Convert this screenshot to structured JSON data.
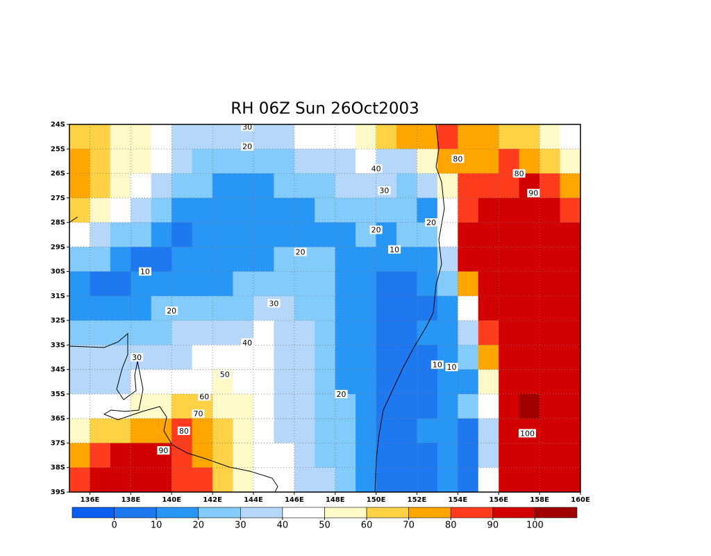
{
  "chart_data": {
    "type": "contour",
    "title": "RH 06Z Sun 26Oct2003",
    "xlim": [
      135,
      160
    ],
    "ylim": [
      -39,
      -24
    ],
    "xticks": [
      {
        "value": 136,
        "label": "136E"
      },
      {
        "value": 138,
        "label": "138E"
      },
      {
        "value": 140,
        "label": "140E"
      },
      {
        "value": 142,
        "label": "142E"
      },
      {
        "value": 144,
        "label": "144E"
      },
      {
        "value": 146,
        "label": "146E"
      },
      {
        "value": 148,
        "label": "148E"
      },
      {
        "value": 150,
        "label": "150E"
      },
      {
        "value": 152,
        "label": "152E"
      },
      {
        "value": 154,
        "label": "154E"
      },
      {
        "value": 156,
        "label": "156E"
      },
      {
        "value": 158,
        "label": "158E"
      },
      {
        "value": 160,
        "label": "160E"
      }
    ],
    "yticks": [
      {
        "value": -24,
        "label": "24S"
      },
      {
        "value": -25,
        "label": "25S"
      },
      {
        "value": -26,
        "label": "26S"
      },
      {
        "value": -27,
        "label": "27S"
      },
      {
        "value": -28,
        "label": "28S"
      },
      {
        "value": -29,
        "label": "29S"
      },
      {
        "value": -30,
        "label": "30S"
      },
      {
        "value": -31,
        "label": "31S"
      },
      {
        "value": -32,
        "label": "32S"
      },
      {
        "value": -33,
        "label": "33S"
      },
      {
        "value": -34,
        "label": "34S"
      },
      {
        "value": -35,
        "label": "35S"
      },
      {
        "value": -36,
        "label": "36S"
      },
      {
        "value": -37,
        "label": "37S"
      },
      {
        "value": -38,
        "label": "38S"
      },
      {
        "value": -39,
        "label": "39S"
      }
    ],
    "grid": true,
    "grid_lon": [
      135.5,
      136.5,
      137.5,
      138.5,
      139.5,
      140.5,
      141.5,
      142.5,
      143.5,
      144.5,
      145.5,
      146.5,
      147.5,
      148.5,
      149.5,
      150.5,
      151.5,
      152.5,
      153.5,
      154.5,
      155.5,
      156.5,
      157.5,
      158.5,
      159.5
    ],
    "grid_lat": [
      -24.5,
      -25.5,
      -26.5,
      -27.5,
      -28.5,
      -29.5,
      -30.5,
      -31.5,
      -32.5,
      -33.5,
      -34.5,
      -35.5,
      -36.5,
      -37.5,
      -38.5
    ],
    "z": [
      [
        65,
        62,
        55,
        55,
        45,
        35,
        33,
        32,
        31,
        35,
        38,
        42,
        45,
        48,
        55,
        65,
        75,
        78,
        85,
        78,
        75,
        68,
        62,
        55,
        45
      ],
      [
        72,
        68,
        58,
        52,
        42,
        33,
        28,
        25,
        22,
        25,
        28,
        32,
        35,
        38,
        42,
        36,
        38,
        50,
        75,
        78,
        78,
        82,
        72,
        65,
        55
      ],
      [
        75,
        62,
        52,
        40,
        33,
        28,
        22,
        18,
        16,
        17,
        20,
        24,
        28,
        32,
        35,
        30,
        28,
        32,
        55,
        80,
        85,
        88,
        90,
        85,
        75
      ],
      [
        65,
        50,
        40,
        32,
        25,
        18,
        12,
        16,
        15,
        15,
        16,
        18,
        21,
        24,
        26,
        25,
        24,
        18,
        40,
        82,
        92,
        94,
        94,
        90,
        82
      ],
      [
        45,
        35,
        28,
        22,
        14,
        9,
        15,
        15,
        15,
        15,
        16,
        17,
        18,
        18,
        20,
        16,
        22,
        25,
        45,
        92,
        95,
        95,
        95,
        95,
        90
      ],
      [
        28,
        22,
        12,
        9,
        8,
        12,
        15,
        15,
        16,
        18,
        20,
        22,
        22,
        16,
        14,
        11,
        15,
        18,
        35,
        90,
        95,
        92,
        95,
        95,
        92
      ],
      [
        14,
        9,
        8,
        10,
        13,
        15,
        16,
        18,
        20,
        23,
        25,
        24,
        22,
        16,
        13,
        8,
        8,
        12,
        25,
        70,
        94,
        96,
        96,
        96,
        94
      ],
      [
        16,
        15,
        16,
        18,
        20,
        22,
        24,
        26,
        28,
        32,
        35,
        28,
        24,
        17,
        12,
        8,
        6,
        8,
        15,
        45,
        92,
        96,
        96,
        96,
        96
      ],
      [
        24,
        24,
        25,
        27,
        29,
        31,
        33,
        35,
        38,
        42,
        38,
        32,
        24,
        18,
        12,
        8,
        7,
        10,
        12,
        35,
        85,
        96,
        96,
        96,
        96
      ],
      [
        31,
        31,
        30,
        33,
        36,
        38,
        40,
        42,
        45,
        42,
        35,
        30,
        22,
        18,
        14,
        8,
        7,
        9,
        12,
        20,
        70,
        96,
        97,
        96,
        96
      ],
      [
        35,
        35,
        37,
        40,
        43,
        46,
        49,
        52,
        48,
        42,
        36,
        30,
        22,
        19,
        14,
        8,
        7,
        9,
        12,
        18,
        50,
        95,
        98,
        96,
        96
      ],
      [
        40,
        44,
        47,
        52,
        56,
        60,
        62,
        58,
        50,
        44,
        38,
        32,
        24,
        21,
        16,
        8,
        7,
        9,
        12,
        20,
        45,
        95,
        101,
        96,
        96
      ],
      [
        58,
        62,
        68,
        72,
        76,
        82,
        76,
        65,
        54,
        45,
        38,
        30,
        26,
        22,
        16,
        8,
        7,
        10,
        14,
        8,
        35,
        95,
        98,
        96,
        96
      ],
      [
        78,
        84,
        91,
        93,
        91,
        86,
        78,
        66,
        56,
        48,
        40,
        33,
        28,
        24,
        18,
        8,
        7,
        9,
        12,
        6,
        30,
        95,
        96,
        96,
        96
      ],
      [
        86,
        91,
        93,
        93,
        91,
        87,
        80,
        66,
        55,
        48,
        42,
        35,
        30,
        26,
        15,
        8,
        7,
        9,
        12,
        5,
        40,
        95,
        96,
        96,
        96
      ]
    ],
    "colorbar": {
      "levels": [
        0,
        10,
        20,
        30,
        40,
        50,
        60,
        70,
        80,
        90,
        100
      ],
      "colors": [
        "#0a5ff0",
        "#1e78f0",
        "#2896f5",
        "#82cbfa",
        "#b4d7fa",
        "#ffffff",
        "#fffac8",
        "#ffd246",
        "#ffa500",
        "#ff3c1e",
        "#d20000",
        "#a00000"
      ]
    },
    "contour_labels": [
      {
        "lon": 143.7,
        "lat": -24.1,
        "value": 30
      },
      {
        "lon": 143.7,
        "lat": -24.9,
        "value": 20
      },
      {
        "lon": 154.0,
        "lat": -25.4,
        "value": 80
      },
      {
        "lon": 150.0,
        "lat": -25.8,
        "value": 40
      },
      {
        "lon": 157.0,
        "lat": -26.0,
        "value": 80
      },
      {
        "lon": 150.4,
        "lat": -26.7,
        "value": 30
      },
      {
        "lon": 157.7,
        "lat": -26.8,
        "value": 90
      },
      {
        "lon": 152.7,
        "lat": -28.0,
        "value": 20
      },
      {
        "lon": 150.0,
        "lat": -28.3,
        "value": 20
      },
      {
        "lon": 146.3,
        "lat": -29.2,
        "value": 20
      },
      {
        "lon": 150.9,
        "lat": -29.1,
        "value": 10
      },
      {
        "lon": 138.7,
        "lat": -30.0,
        "value": 10
      },
      {
        "lon": 145.0,
        "lat": -31.3,
        "value": 30
      },
      {
        "lon": 140.0,
        "lat": -31.6,
        "value": 20
      },
      {
        "lon": 143.7,
        "lat": -32.9,
        "value": 40
      },
      {
        "lon": 138.3,
        "lat": -33.5,
        "value": 30
      },
      {
        "lon": 153.0,
        "lat": -33.8,
        "value": 10
      },
      {
        "lon": 153.7,
        "lat": -33.9,
        "value": 10
      },
      {
        "lon": 142.6,
        "lat": -34.2,
        "value": 50
      },
      {
        "lon": 148.3,
        "lat": -35.0,
        "value": 20
      },
      {
        "lon": 141.6,
        "lat": -35.1,
        "value": 60
      },
      {
        "lon": 141.3,
        "lat": -35.8,
        "value": 70
      },
      {
        "lon": 140.6,
        "lat": -36.5,
        "value": 80
      },
      {
        "lon": 157.4,
        "lat": -36.6,
        "value": 100
      },
      {
        "lon": 139.6,
        "lat": -37.3,
        "value": 90
      }
    ]
  }
}
